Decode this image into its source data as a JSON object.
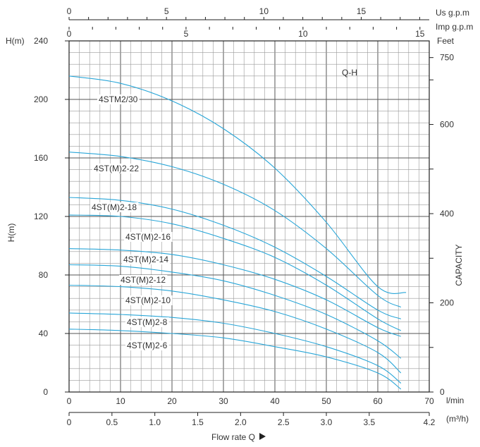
{
  "chart_data": {
    "type": "line",
    "title": "Q-H",
    "colors": {
      "curve": "#29a6d8",
      "grid_minor": "#9a9a9a",
      "grid_major": "#555555",
      "axis": "#222222"
    },
    "x_lpm": {
      "unit": "l/min",
      "ticks": [
        "0",
        "10",
        "20",
        "30",
        "40",
        "50",
        "60",
        "70"
      ],
      "range": [
        0,
        70
      ]
    },
    "x_m3h": {
      "unit": "(m³/h)",
      "ticks": [
        "0",
        "0.5",
        "1.0",
        "1.5",
        "2.0",
        "2.5",
        "3.0",
        "3.5",
        "4.2"
      ]
    },
    "x_usgpm": {
      "unit": "Us g.p.m",
      "ticks": [
        "0",
        "5",
        "10",
        "15"
      ]
    },
    "x_impgpm": {
      "unit": "Imp g.p.m",
      "ticks": [
        "0",
        "5",
        "10",
        "15"
      ]
    },
    "y_m": {
      "label": "H(m)",
      "top_label": "H(m)",
      "ticks": [
        "0",
        "40",
        "80",
        "120",
        "160",
        "200",
        "240"
      ],
      "range": [
        0,
        240
      ]
    },
    "y_feet": {
      "label": "CAPACITY",
      "unit": "Feet",
      "ticks": [
        "0",
        "200",
        "400",
        "600",
        "750"
      ]
    },
    "xlabel": "Flow rate Q",
    "series": [
      {
        "name": "4STM2/30",
        "x": [
          0,
          10,
          20,
          30,
          40,
          50,
          60,
          65.5
        ],
        "values": [
          216,
          211,
          199,
          180,
          153,
          116,
          72,
          68
        ]
      },
      {
        "name": "4ST(M)2-22",
        "x": [
          0,
          10,
          20,
          30,
          40,
          50,
          60,
          64.5
        ],
        "values": [
          164,
          161,
          154,
          142,
          124,
          98,
          66,
          58
        ]
      },
      {
        "name": "4ST(M)2-18",
        "x": [
          0,
          10,
          20,
          30,
          40,
          50,
          60,
          64.5
        ],
        "values": [
          133,
          131,
          125,
          114,
          99,
          79,
          56,
          50
        ]
      },
      {
        "name": "4ST(M)2-16",
        "x": [
          0,
          10,
          20,
          30,
          40,
          50,
          60,
          64.5
        ],
        "values": [
          121,
          120,
          115,
          105,
          92,
          73,
          50,
          42
        ]
      },
      {
        "name": "4ST(M)2-14",
        "x": [
          0,
          10,
          20,
          30,
          40,
          50,
          60,
          64.5
        ],
        "values": [
          98,
          97,
          94,
          87,
          77,
          63,
          44,
          38
        ]
      },
      {
        "name": "4ST(M)2-12",
        "x": [
          0,
          10,
          20,
          30,
          40,
          50,
          60,
          64.5
        ],
        "values": [
          87,
          86,
          82,
          76,
          66,
          53,
          35,
          23
        ]
      },
      {
        "name": "4ST(M)2-10",
        "x": [
          0,
          10,
          20,
          30,
          40,
          50,
          60,
          64.5
        ],
        "values": [
          73,
          72,
          69,
          63,
          55,
          43,
          27,
          13
        ]
      },
      {
        "name": "4ST(M)2-8",
        "x": [
          0,
          10,
          20,
          30,
          40,
          50,
          60,
          64.5
        ],
        "values": [
          54,
          53,
          51,
          47,
          40,
          31,
          18,
          6
        ]
      },
      {
        "name": "4ST(M)2-6",
        "x": [
          0,
          10,
          20,
          30,
          40,
          50,
          60,
          64.5
        ],
        "values": [
          43,
          42,
          40,
          37,
          31,
          24,
          13,
          2
        ]
      }
    ]
  }
}
